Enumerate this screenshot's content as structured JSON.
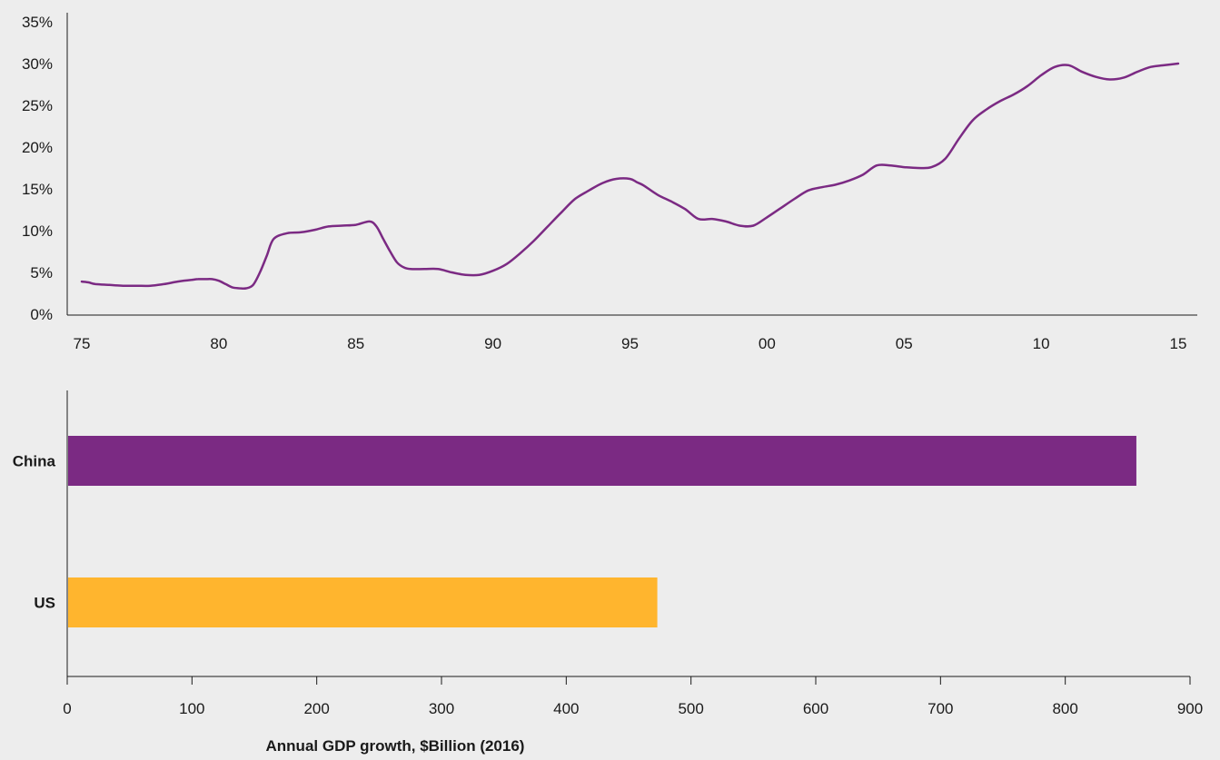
{
  "chart_data": [
    {
      "type": "line",
      "title": "",
      "xlabel": "",
      "ylabel": "",
      "x_tick_labels": [
        "75",
        "80",
        "85",
        "90",
        "95",
        "00",
        "05",
        "10",
        "15"
      ],
      "x_tick_years": [
        1975,
        1980,
        1985,
        1990,
        1995,
        2000,
        2005,
        2010,
        2015
      ],
      "y_tick_labels": [
        "0%",
        "5%",
        "10%",
        "15%",
        "20%",
        "25%",
        "30%",
        "35%"
      ],
      "y_tick_values": [
        0,
        5,
        10,
        15,
        20,
        25,
        30,
        35
      ],
      "xlim": [
        1975,
        2015
      ],
      "ylim": [
        0,
        35
      ],
      "grid": false,
      "series": [
        {
          "color": "#7b2a83",
          "x": [
            1975.0,
            1975.25,
            1975.5,
            1976.0,
            1976.5,
            1977.0,
            1977.5,
            1978.0,
            1978.5,
            1979.0,
            1979.25,
            1979.5,
            1979.75,
            1980.0,
            1980.25,
            1980.5,
            1980.75,
            1981.0,
            1981.25,
            1981.5,
            1981.75,
            1982.0,
            1982.5,
            1983.0,
            1983.5,
            1984.0,
            1984.5,
            1985.0,
            1985.5,
            1985.75,
            1986.0,
            1986.25,
            1986.5,
            1986.75,
            1987.0,
            1987.5,
            1988.0,
            1988.5,
            1989.0,
            1989.5,
            1990.0,
            1990.5,
            1991.0,
            1991.5,
            1992.0,
            1992.5,
            1993.0,
            1993.5,
            1994.0,
            1994.5,
            1995.0,
            1995.25,
            1995.5,
            1996.0,
            1996.5,
            1997.0,
            1997.5,
            1998.0,
            1998.5,
            1999.0,
            1999.5,
            2000.0,
            2000.5,
            2001.0,
            2001.5,
            2002.0,
            2002.5,
            2003.0,
            2003.5,
            2004.0,
            2004.5,
            2005.0,
            2005.5,
            2006.0,
            2006.5,
            2007.0,
            2007.5,
            2008.0,
            2008.5,
            2009.0,
            2009.5,
            2010.0,
            2010.5,
            2011.0,
            2011.5,
            2012.0,
            2012.5,
            2013.0,
            2013.5,
            2014.0,
            2014.5,
            2015.0
          ],
          "values": [
            3.9,
            3.8,
            3.6,
            3.5,
            3.4,
            3.4,
            3.4,
            3.6,
            3.9,
            4.1,
            4.2,
            4.2,
            4.2,
            4.0,
            3.6,
            3.2,
            3.1,
            3.1,
            3.5,
            5.0,
            7.0,
            9.0,
            9.7,
            9.8,
            10.1,
            10.5,
            10.6,
            10.7,
            11.1,
            10.5,
            9.0,
            7.5,
            6.2,
            5.6,
            5.4,
            5.4,
            5.4,
            5.0,
            4.7,
            4.7,
            5.2,
            6.0,
            7.3,
            8.8,
            10.5,
            12.2,
            13.8,
            14.8,
            15.7,
            16.2,
            16.2,
            15.8,
            15.4,
            14.3,
            13.5,
            12.6,
            11.4,
            11.4,
            11.1,
            10.6,
            10.6,
            11.6,
            12.7,
            13.8,
            14.8,
            15.2,
            15.5,
            16.0,
            16.7,
            17.8,
            17.8,
            17.6,
            17.5,
            17.6,
            18.6,
            21.0,
            23.2,
            24.5,
            25.5,
            26.3,
            27.3,
            28.6,
            29.6,
            29.8,
            29.0,
            28.4,
            28.1,
            28.3,
            29.0,
            29.6,
            29.8,
            30.0
          ]
        }
      ]
    },
    {
      "type": "bar",
      "orientation": "horizontal",
      "title": "",
      "xlabel": "Annual GDP growth, $Billion (2016)",
      "ylabel": "",
      "categories": [
        "China",
        "US"
      ],
      "values": [
        857,
        473
      ],
      "colors": [
        "#7b2a83",
        "#ffb52e"
      ],
      "x_tick_labels": [
        "0",
        "100",
        "200",
        "300",
        "400",
        "500",
        "600",
        "700",
        "800",
        "900"
      ],
      "x_tick_values": [
        0,
        100,
        200,
        300,
        400,
        500,
        600,
        700,
        800,
        900
      ],
      "xlim": [
        0,
        900
      ],
      "grid": false
    }
  ]
}
